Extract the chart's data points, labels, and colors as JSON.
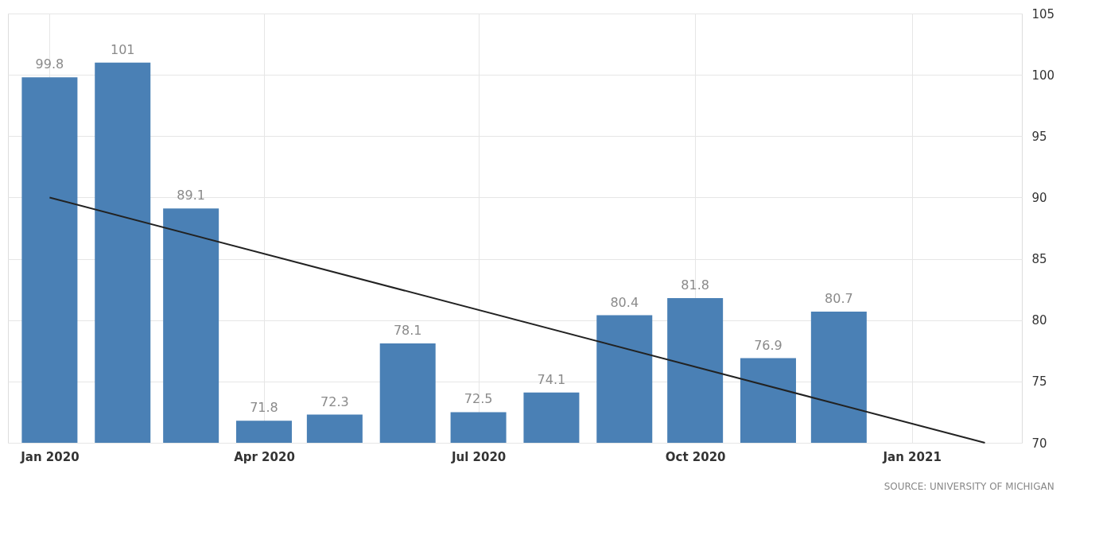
{
  "chart_data": {
    "type": "bar",
    "x": [
      "2020-01-01",
      "2020-02-01",
      "2020-03-01",
      "2020-04-01",
      "2020-05-01",
      "2020-06-01",
      "2020-07-01",
      "2020-08-01",
      "2020-09-01",
      "2020-10-01",
      "2020-11-01",
      "2020-12-01"
    ],
    "series": [
      {
        "color": "#4a80b5",
        "values": [
          99.8,
          101,
          89.1,
          71.8,
          72.3,
          78.1,
          72.5,
          74.1,
          80.4,
          81.8,
          76.9,
          80.7
        ],
        "value_labels": [
          "99.8",
          "101",
          "89.1",
          "71.8",
          "72.3",
          "78.1",
          "72.5",
          "74.1",
          "80.4",
          "81.8",
          "76.9",
          "80.7"
        ]
      },
      {
        "type": "line",
        "color": "#222222",
        "x": [
          "2020-01-01",
          "2021-02-01"
        ],
        "values": [
          90,
          70
        ]
      }
    ],
    "xlim": [
      "2019-12-16",
      "2021-02-15"
    ],
    "xticks": [
      {
        "value": "2020-01-01",
        "label": "Jan 2020"
      },
      {
        "value": "2020-04-01",
        "label": "Apr 2020"
      },
      {
        "value": "2020-07-01",
        "label": "Jul 2020"
      },
      {
        "value": "2020-10-01",
        "label": "Oct 2020"
      },
      {
        "value": "2021-01-01",
        "label": "Jan 2021"
      }
    ],
    "ylim": [
      70,
      105
    ],
    "yticks": [
      70,
      75,
      80,
      85,
      90,
      95,
      100,
      105
    ],
    "grid": true,
    "annotations": [
      "SOURCE: UNIVERSITY OF MICHIGAN"
    ]
  }
}
